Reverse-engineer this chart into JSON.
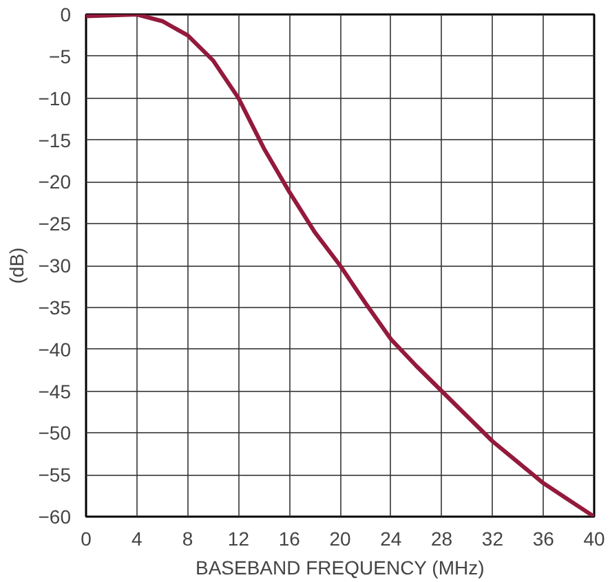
{
  "chart_data": {
    "type": "line",
    "xlabel": "BASEBAND FREQUENCY (MHz)",
    "ylabel": "(dB)",
    "x": [
      0,
      2,
      4,
      6,
      8,
      10,
      12,
      14,
      16,
      18,
      20,
      22,
      24,
      26,
      28,
      30,
      32,
      34,
      36,
      38,
      40
    ],
    "series": [
      {
        "color": "#931a3c",
        "values": [
          -0.2,
          -0.1,
          0,
          -0.8,
          -2.5,
          -5.5,
          -10,
          -16,
          -21.2,
          -26,
          -30,
          -34.5,
          -38.8,
          -42,
          -45,
          -48,
          -51,
          -53.5,
          -56,
          -58,
          -60
        ]
      }
    ],
    "xlim": [
      0,
      40
    ],
    "ylim": [
      -60,
      0
    ],
    "xticks": [
      0,
      4,
      8,
      12,
      16,
      20,
      24,
      28,
      32,
      36,
      40
    ],
    "yticks": [
      {
        "value": 0,
        "label": "0"
      },
      {
        "value": -5,
        "label": "−5"
      },
      {
        "value": -10,
        "label": "−10"
      },
      {
        "value": -15,
        "label": "−15"
      },
      {
        "value": -20,
        "label": "−20"
      },
      {
        "value": -25,
        "label": "−25"
      },
      {
        "value": -30,
        "label": "−30"
      },
      {
        "value": -35,
        "label": "−35"
      },
      {
        "value": -40,
        "label": "−40"
      },
      {
        "value": -45,
        "label": "−45"
      },
      {
        "value": -50,
        "label": "−50"
      },
      {
        "value": -55,
        "label": "−55"
      },
      {
        "value": -60,
        "label": "−60"
      }
    ],
    "grid": true,
    "line_style": "solid",
    "marker": "none"
  }
}
